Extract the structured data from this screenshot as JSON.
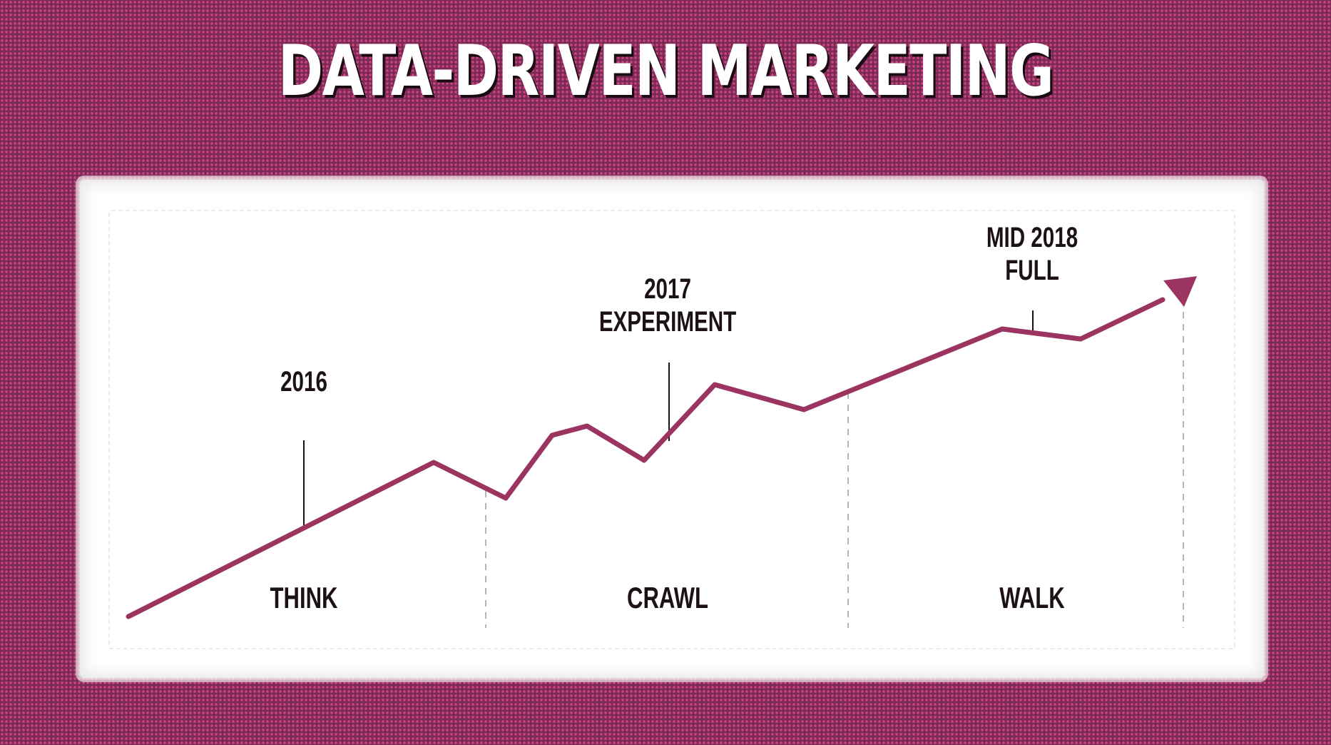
{
  "title": "DATA-DRIVEN MARKETING",
  "colors": {
    "background": "#7a2a55",
    "dots": "#c7447f",
    "line": "#9c3461",
    "card": "#ffffff",
    "text": "#1b1116"
  },
  "phases": [
    {
      "label": "THINK"
    },
    {
      "label": "CRAWL"
    },
    {
      "label": "WALK"
    }
  ],
  "milestones": [
    {
      "lines": [
        "2016"
      ]
    },
    {
      "lines": [
        "2017",
        "EXPERIMENT"
      ]
    },
    {
      "lines": [
        "MID 2018",
        "FULL"
      ]
    }
  ]
}
